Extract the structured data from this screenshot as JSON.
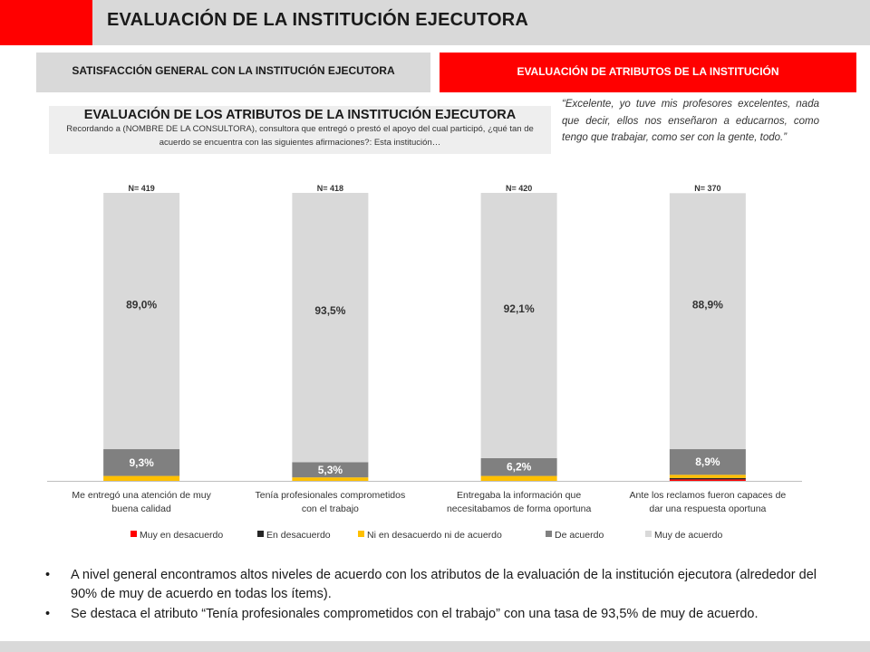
{
  "header": {
    "title": "EVALUACIÓN DE LA INSTITUCIÓN EJECUTORA"
  },
  "tabs": [
    {
      "label": "SATISFACCIÓN GENERAL CON LA INSTITUCIÓN EJECUTORA"
    },
    {
      "label": "EVALUACIÓN DE ATRIBUTOS DE LA INSTITUCIÓN"
    }
  ],
  "section": {
    "title": "EVALUACIÓN DE LOS ATRIBUTOS DE LA INSTITUCIÓN EJECUTORA",
    "subtitle": "Recordando a (NOMBRE DE LA CONSULTORA), consultora que entregó o prestó el apoyo del cual participó, ¿qué tan de acuerdo se encuentra con las siguientes afirmaciones?: Esta institución…"
  },
  "quote": "“Excelente, yo tuve mis profesores excelentes, nada que decir, ellos nos enseñaron a educarnos, como tengo que trabajar, como ser con la gente, todo.”",
  "chart_data": {
    "type": "bar",
    "stacked": true,
    "categories": [
      "Me entregó una atención de muy buena calidad",
      "Tenía profesionales comprometidos con el trabajo",
      "Entregaba la información que necesitabamos de forma oportuna",
      "Ante los reclamos fueron capaces de dar una respuesta oportuna"
    ],
    "n_labels": [
      "N= 419",
      "N= 418",
      "N= 420",
      "N= 370"
    ],
    "series": [
      {
        "name": "Muy en desacuerdo",
        "color": "#ff0000",
        "values": [
          0.0,
          0.0,
          0.0,
          0.5
        ]
      },
      {
        "name": "En desacuerdo",
        "color": "#262626",
        "values": [
          0.0,
          0.0,
          0.0,
          0.5
        ]
      },
      {
        "name": "Ni en desacuerdo ni de acuerdo",
        "color": "#ffc000",
        "values": [
          1.7,
          1.2,
          1.7,
          1.1
        ]
      },
      {
        "name": "De acuerdo",
        "color": "#808080",
        "values": [
          9.3,
          5.3,
          6.2,
          8.9
        ],
        "labels": [
          "9,3%",
          "5,3%",
          "6,2%",
          "8,9%"
        ]
      },
      {
        "name": "Muy de acuerdo",
        "color": "#d9d9d9",
        "values": [
          89.0,
          93.5,
          92.1,
          88.9
        ],
        "labels": [
          "89,0%",
          "93,5%",
          "92,1%",
          "88,9%"
        ]
      }
    ],
    "ylim": [
      0,
      100
    ],
    "legend_position": "bottom"
  },
  "bullets": [
    "A nivel general encontramos altos niveles de acuerdo con los atributos de la evaluación de la institución ejecutora (alrededor del 90% de muy de acuerdo en todas los ítems).",
    "Se destaca el atributo “Tenía profesionales comprometidos con el trabajo” con una tasa de 93,5% de muy de acuerdo."
  ]
}
